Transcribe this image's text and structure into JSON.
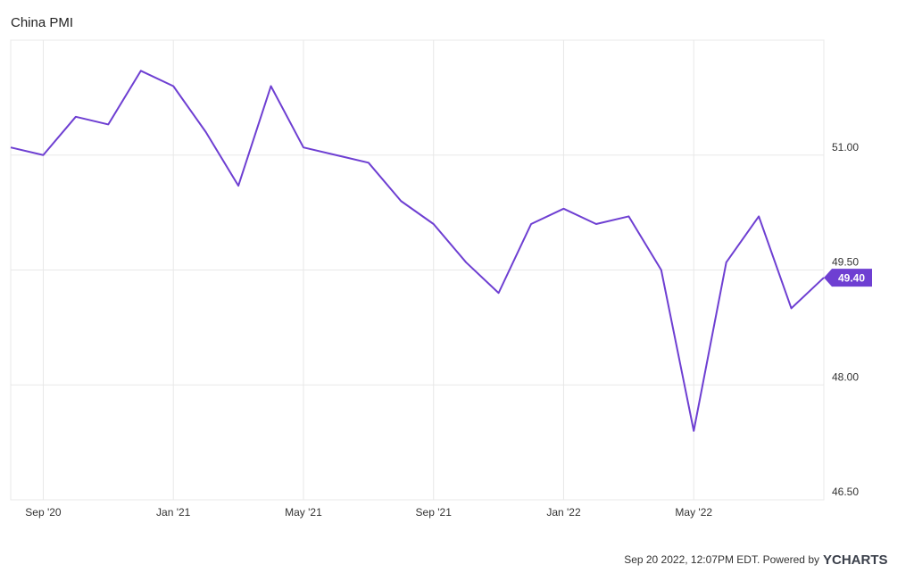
{
  "chart_data": {
    "type": "line",
    "title": "China PMI",
    "categories": [
      null,
      "Sep '20",
      null,
      null,
      null,
      "Jan '21",
      null,
      null,
      null,
      "May '21",
      null,
      null,
      null,
      "Sep '21",
      null,
      null,
      null,
      "Jan '22",
      null,
      null,
      null,
      "May '22",
      null,
      null,
      null,
      null
    ],
    "series": [
      {
        "name": "China PMI",
        "color": "#6e3fd2",
        "values": [
          51.1,
          51.0,
          51.5,
          51.4,
          52.1,
          51.9,
          51.3,
          50.6,
          51.9,
          51.1,
          51.0,
          50.9,
          50.4,
          50.1,
          49.6,
          49.2,
          50.1,
          50.3,
          50.1,
          50.2,
          49.5,
          47.4,
          49.6,
          50.2,
          49.0,
          49.4
        ],
        "value_labels": [
          null,
          null,
          null,
          null,
          null,
          null,
          null,
          null,
          null,
          null,
          null,
          null,
          null,
          null,
          null,
          null,
          null,
          null,
          null,
          null,
          null,
          null,
          null,
          null,
          null,
          "49.40"
        ]
      }
    ],
    "ylim": [
      46.5,
      52.5
    ],
    "yticks": [
      {
        "value": 46.5,
        "label": "46.50"
      },
      {
        "value": 48,
        "label": "48.00"
      },
      {
        "value": 49.5,
        "label": "49.50"
      },
      {
        "value": 51,
        "label": "51.00"
      }
    ],
    "grid": true,
    "footer": "Sep 20 2022, 12:07PM EDT. Powered by",
    "brand": "YCHARTS"
  }
}
